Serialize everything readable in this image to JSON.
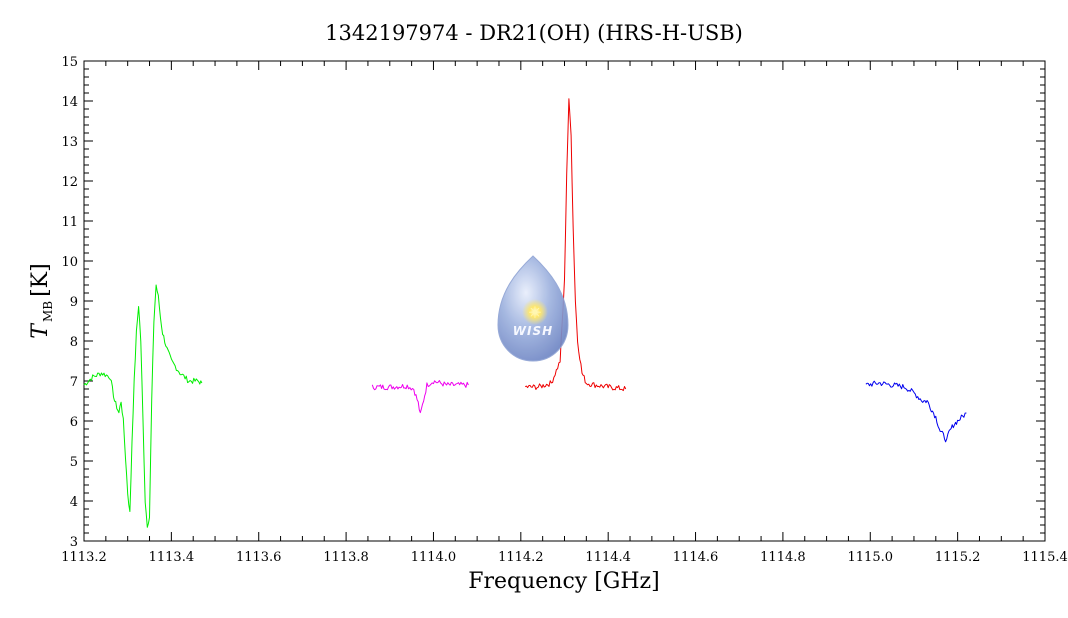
{
  "chart_data": {
    "type": "line",
    "title": "1342197974 - DR21(OH) (HRS-H-USB)",
    "xlabel": "Frequency [GHz]",
    "ylabel_main": "T",
    "ylabel_sub": "MB",
    "ylabel_unit": "[K]",
    "xlim": [
      1113.2,
      1115.4
    ],
    "ylim": [
      3,
      15
    ],
    "xticks": [
      "1113.2",
      "1113.4",
      "1113.6",
      "1113.8",
      "1114.0",
      "1114.2",
      "1114.4",
      "1114.6",
      "1114.8",
      "1115.0",
      "1115.2",
      "1115.4"
    ],
    "yticks": [
      "3",
      "4",
      "5",
      "6",
      "7",
      "8",
      "9",
      "10",
      "11",
      "12",
      "13",
      "14",
      "15"
    ],
    "grid": false,
    "logo_text": "WISH",
    "series": [
      {
        "color": "#00ee00",
        "x": [
          1113.2,
          1113.22,
          1113.24,
          1113.26,
          1113.27,
          1113.28,
          1113.285,
          1113.29,
          1113.3,
          1113.305,
          1113.31,
          1113.315,
          1113.32,
          1113.325,
          1113.33,
          1113.335,
          1113.34,
          1113.345,
          1113.35,
          1113.355,
          1113.36,
          1113.365,
          1113.37,
          1113.375,
          1113.38,
          1113.39,
          1113.4,
          1113.42,
          1113.44,
          1113.46,
          1113.47
        ],
        "y": [
          6.9,
          7.1,
          7.2,
          7.1,
          6.5,
          6.2,
          6.5,
          6.0,
          4.2,
          3.7,
          5.5,
          7.0,
          8.2,
          8.9,
          8.0,
          6.0,
          4.0,
          3.4,
          3.6,
          6.5,
          8.5,
          9.4,
          9.1,
          8.6,
          8.2,
          7.8,
          7.5,
          7.2,
          7.0,
          7.0,
          6.95
        ]
      },
      {
        "color": "#ee00ee",
        "x": [
          1113.86,
          1113.9,
          1113.94,
          1113.955,
          1113.965,
          1113.97,
          1113.975,
          1113.985,
          1114.0,
          1114.03,
          1114.06,
          1114.08
        ],
        "y": [
          6.85,
          6.85,
          6.88,
          6.8,
          6.45,
          6.15,
          6.4,
          6.9,
          7.0,
          6.9,
          6.9,
          6.9
        ]
      },
      {
        "color": "#ee0000",
        "x": [
          1114.21,
          1114.24,
          1114.27,
          1114.29,
          1114.3,
          1114.305,
          1114.31,
          1114.315,
          1114.32,
          1114.325,
          1114.33,
          1114.34,
          1114.35,
          1114.37,
          1114.4,
          1114.44
        ],
        "y": [
          6.85,
          6.85,
          6.95,
          7.5,
          9.5,
          12.2,
          14.0,
          13.2,
          10.8,
          9.0,
          8.0,
          7.2,
          6.95,
          6.9,
          6.85,
          6.8
        ]
      },
      {
        "color": "#0000ee",
        "x": [
          1114.99,
          1115.02,
          1115.05,
          1115.08,
          1115.1,
          1115.12,
          1115.13,
          1115.14,
          1115.15,
          1115.16,
          1115.17,
          1115.175,
          1115.18,
          1115.19,
          1115.2,
          1115.22
        ],
        "y": [
          6.9,
          6.95,
          6.9,
          6.85,
          6.7,
          6.5,
          6.5,
          6.3,
          6.1,
          5.75,
          5.6,
          5.5,
          5.7,
          5.9,
          6.0,
          6.2
        ]
      }
    ]
  }
}
